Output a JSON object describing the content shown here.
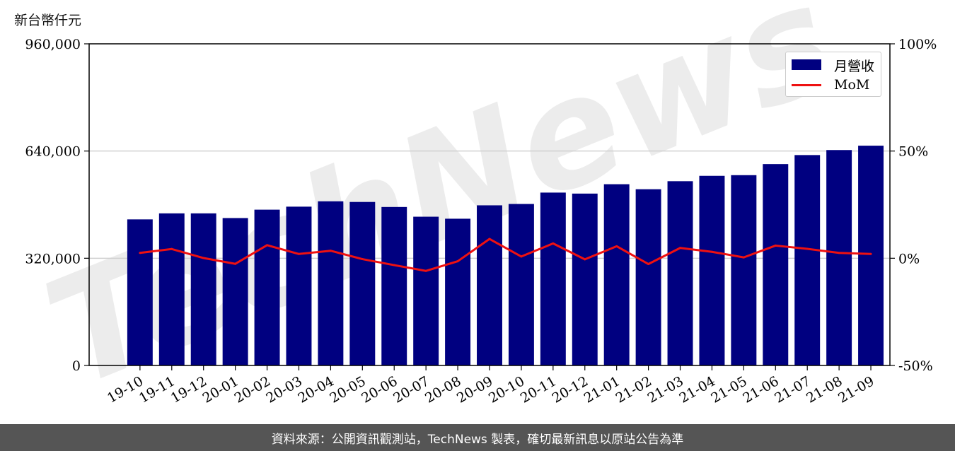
{
  "unit_label": "新台幣仟元",
  "footer_text": "資料來源：公開資訊觀測站，TechNews 製表，確切最新訊息以原站公告為準",
  "watermark_text": "TechNews",
  "colors": {
    "bar": "#000080",
    "line": "#ee1111",
    "footer_bg": "#555555"
  },
  "chart_data": {
    "type": "bar",
    "categories": [
      "19-10",
      "19-11",
      "19-12",
      "20-01",
      "20-02",
      "20-03",
      "20-04",
      "20-05",
      "20-06",
      "20-07",
      "20-08",
      "20-09",
      "20-10",
      "20-11",
      "20-12",
      "21-01",
      "21-02",
      "21-03",
      "21-04",
      "21-05",
      "21-06",
      "21-07",
      "21-08",
      "21-09"
    ],
    "series": [
      {
        "name": "月營收",
        "axis": "left",
        "type": "bar",
        "values": [
          436000,
          454000,
          454000,
          440000,
          465000,
          474000,
          490000,
          488000,
          473000,
          444000,
          438000,
          478000,
          482000,
          516000,
          513000,
          541000,
          526000,
          550000,
          566000,
          568000,
          601000,
          628000,
          643000,
          656000
        ]
      },
      {
        "name": "MoM",
        "axis": "right",
        "type": "line",
        "values": [
          2.5,
          4.3,
          0.1,
          -2.6,
          6.1,
          2.0,
          3.5,
          -0.4,
          -3.2,
          -5.9,
          -1.4,
          9.0,
          0.8,
          6.9,
          -0.5,
          5.6,
          -2.7,
          4.8,
          3.0,
          0.4,
          5.9,
          4.4,
          2.5,
          2.0
        ]
      }
    ],
    "left_axis": {
      "ylim": [
        0,
        960000
      ],
      "ticks": [
        "0",
        "320,000",
        "640,000",
        "960,000"
      ]
    },
    "right_axis": {
      "ylim": [
        -50,
        100
      ],
      "ticks": [
        "-50%",
        "0%",
        "50%",
        "100%"
      ]
    },
    "grid": "horizontal",
    "legend_position": "top-right"
  }
}
